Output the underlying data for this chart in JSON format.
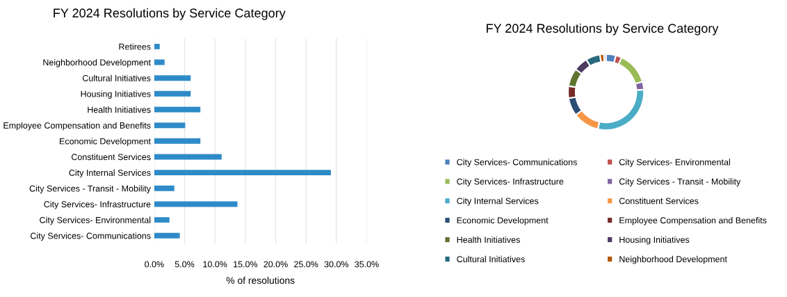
{
  "chart_data": [
    {
      "type": "bar",
      "orientation": "horizontal",
      "title": "FY 2024 Resolutions by Service Category",
      "xlabel": "% of resolutions",
      "categories": [
        "Retirees",
        "Neighborhood Development",
        "Cultural Initiatives",
        "Housing Initiatives",
        "Health Initiatives",
        "Employee Compensation and Benefits",
        "Economic Development",
        "Constituent Services",
        "City Internal Services",
        "City Services - Transit - Mobility",
        "City Services- Infrastructure",
        "City Services- Environmental",
        "City Services- Communications"
      ],
      "values": [
        0.9,
        1.7,
        6.0,
        6.0,
        7.6,
        5.1,
        7.6,
        11.1,
        29.1,
        3.3,
        13.7,
        2.5,
        4.2
      ],
      "color": "#2e8bc8",
      "xlim": [
        0,
        35
      ],
      "xticks": [
        {
          "value": 0,
          "label": "0.0%"
        },
        {
          "value": 5,
          "label": "5.0%"
        },
        {
          "value": 10,
          "label": "10.0%"
        },
        {
          "value": 15,
          "label": "15.0%"
        },
        {
          "value": 20,
          "label": "20.0%"
        },
        {
          "value": 25,
          "label": "25.0%"
        },
        {
          "value": 30,
          "label": "30.0%"
        },
        {
          "value": 35,
          "label": "35.0%"
        }
      ],
      "grid": "x"
    },
    {
      "type": "donut",
      "title": "FY 2024 Resolutions by Service Category",
      "categories": [
        "City Services- Communications",
        "City Services- Environmental",
        "City Services- Infrastructure",
        "City Services - Transit - Mobility",
        "City Internal Services",
        "Constituent Services",
        "Economic Development",
        "Employee Compensation and Benefits",
        "Health Initiatives",
        "Housing Initiatives",
        "Cultural Initiatives",
        "Neighborhood Development",
        null
      ],
      "values": [
        4.25,
        2.53,
        13.87,
        3.34,
        29.47,
        11.24,
        7.7,
        5.16,
        7.7,
        6.08,
        6.08,
        1.72,
        0.86
      ],
      "colors": [
        "#4f81bd",
        "#c0504d",
        "#9bbb59",
        "#8064a2",
        "#4bacc6",
        "#f79646",
        "#2c4d75",
        "#772c2a",
        "#5f7530",
        "#4d3b62",
        "#276a7c",
        "#b65708",
        "#729aca"
      ],
      "legend": "bottom"
    }
  ]
}
